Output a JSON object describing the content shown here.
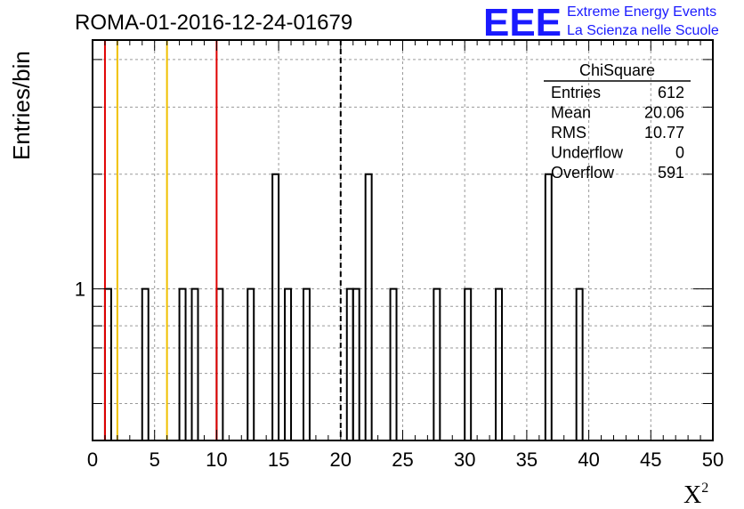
{
  "chart_data": {
    "type": "bar",
    "title": "ROMA-01-2016-12-24-01679",
    "xlabel": "X",
    "xlabel_superscript": "2",
    "ylabel": "Entries/bin",
    "y_scale": "log",
    "xlim": [
      0,
      50
    ],
    "ylim": [
      0.4,
      4.5
    ],
    "x_ticks": [
      "0",
      "5",
      "10",
      "15",
      "20",
      "25",
      "30",
      "35",
      "40",
      "45",
      "50"
    ],
    "y_tick_labels": [
      {
        "value": 1,
        "label": "1"
      }
    ],
    "grid": true,
    "bin_width": 0.5,
    "bins": [
      {
        "x": 1.0,
        "count": 1
      },
      {
        "x": 4.0,
        "count": 1
      },
      {
        "x": 7.0,
        "count": 1
      },
      {
        "x": 8.0,
        "count": 1
      },
      {
        "x": 10.0,
        "count": 1
      },
      {
        "x": 12.5,
        "count": 1
      },
      {
        "x": 14.5,
        "count": 2
      },
      {
        "x": 15.5,
        "count": 1
      },
      {
        "x": 17.0,
        "count": 1
      },
      {
        "x": 20.5,
        "count": 1
      },
      {
        "x": 21.0,
        "count": 1
      },
      {
        "x": 22.0,
        "count": 2
      },
      {
        "x": 24.0,
        "count": 1
      },
      {
        "x": 27.5,
        "count": 1
      },
      {
        "x": 30.0,
        "count": 1
      },
      {
        "x": 32.5,
        "count": 1
      },
      {
        "x": 36.5,
        "count": 2
      },
      {
        "x": 39.0,
        "count": 1
      }
    ],
    "vertical_lines": [
      {
        "x": 1.0,
        "color": "#e00000",
        "style": "solid"
      },
      {
        "x": 2.0,
        "color": "#f0c000",
        "style": "solid"
      },
      {
        "x": 6.0,
        "color": "#f0c000",
        "style": "solid"
      },
      {
        "x": 10.0,
        "color": "#e00000",
        "style": "solid"
      },
      {
        "x": 20.0,
        "color": "#000000",
        "style": "dashed"
      }
    ],
    "stats_box": {
      "title": "ChiSquare",
      "rows": [
        {
          "label": "Entries",
          "value": "612"
        },
        {
          "label": "Mean",
          "value": "20.06"
        },
        {
          "label": "RMS",
          "value": "10.77"
        },
        {
          "label": "Underflow",
          "value": "0"
        },
        {
          "label": "Overflow",
          "value": "591"
        }
      ]
    }
  },
  "logo": {
    "acronym": "EEE",
    "line1": "Extreme Energy Events",
    "line2": "La Scienza nelle Scuole",
    "color": "#1a1aff"
  }
}
